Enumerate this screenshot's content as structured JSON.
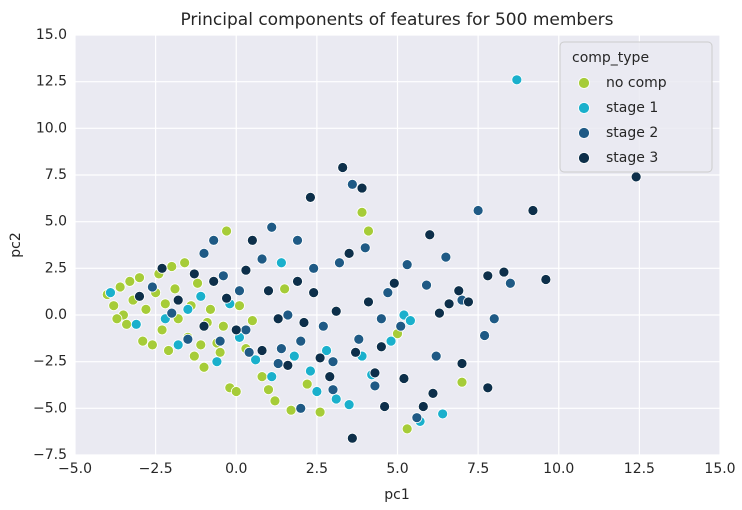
{
  "chart_data": {
    "type": "scatter",
    "title": "Principal components of features for 500 members",
    "x_label": "pc1",
    "y_label": "pc2",
    "legend_title": "comp_type",
    "legend": "upper right",
    "grid": true,
    "xlim": [
      -5,
      15
    ],
    "ylim": [
      -7.5,
      15
    ],
    "xticks": [
      {
        "value": -5,
        "label": "−5.0"
      },
      {
        "value": -2.5,
        "label": "−2.5"
      },
      {
        "value": 0,
        "label": "0.0"
      },
      2.5,
      {
        "value": 5,
        "label": "5.0"
      },
      7.5,
      {
        "value": 10,
        "label": "10.0"
      },
      12.5,
      {
        "value": 15,
        "label": "15.0"
      }
    ],
    "yticks": [
      {
        "value": -7.5,
        "label": "−7.5"
      },
      {
        "value": -5,
        "label": "−5.0"
      },
      {
        "value": -2.5,
        "label": "−2.5"
      },
      {
        "value": 0,
        "label": "0.0"
      },
      2.5,
      {
        "value": 5,
        "label": "5.0"
      },
      7.5,
      {
        "value": 10,
        "label": "10.0"
      },
      12.5,
      {
        "value": 15,
        "label": "15.0"
      }
    ],
    "series": [
      {
        "name": "no comp",
        "color": "#a6cc38",
        "x": [
          -4,
          -3.8,
          -3.6,
          -3.5,
          -3.4,
          -3.3,
          -3.2,
          -3,
          -2.9,
          -2.8,
          -2.6,
          -2.5,
          -2.4,
          -2.3,
          -2.2,
          -2.1,
          -2,
          -1.9,
          -1.8,
          -1.6,
          -1.5,
          -1.4,
          -1.3,
          -1.2,
          -1.1,
          -1,
          -0.9,
          -0.8,
          -0.6,
          -0.5,
          -0.4,
          -0.3,
          -0.2,
          0,
          0.1,
          0.3,
          0.5,
          0.8,
          1,
          1.2,
          1.5,
          1.7,
          2.2,
          2.6,
          3.9,
          4.1,
          5,
          5.3,
          7,
          -3.7
        ],
        "y": [
          1.1,
          0.5,
          1.5,
          0,
          -0.5,
          1.8,
          0.8,
          2,
          -1.4,
          0.3,
          -1.6,
          1.2,
          2.2,
          -0.8,
          0.6,
          -1.9,
          2.6,
          1.4,
          -0.2,
          2.8,
          -1.2,
          0.5,
          -2.2,
          1.7,
          -1.6,
          -2.8,
          -0.4,
          0.3,
          -1.5,
          -2,
          -0.6,
          4.5,
          -3.9,
          -4.1,
          0.5,
          -1.8,
          -0.3,
          -3.3,
          -4,
          -4.6,
          1.4,
          -5.1,
          -3.7,
          -5.2,
          5.5,
          4.5,
          -1,
          -6.1,
          -3.6,
          -0.2
        ]
      },
      {
        "name": "stage 1",
        "color": "#1ab0cc",
        "x": [
          8.7,
          -3.9,
          -3.1,
          -2.2,
          -1.8,
          -1.5,
          -1.1,
          -0.6,
          -0.2,
          0.1,
          0.6,
          1.1,
          1.4,
          1.8,
          2.3,
          2.8,
          3.1,
          3.5,
          3.9,
          4.2,
          5.2,
          5.4,
          6.4,
          5.7,
          2.5,
          4.8
        ],
        "y": [
          12.6,
          1.2,
          -0.5,
          -0.2,
          -1.6,
          0.3,
          1,
          -2.5,
          0.6,
          -1.2,
          -2.4,
          -3.3,
          2.8,
          -2.2,
          -3,
          -1.9,
          -4.5,
          -4.8,
          -2.2,
          -3.2,
          0,
          -0.3,
          -5.3,
          -5.7,
          -4.1,
          -1.4
        ]
      },
      {
        "name": "stage 2",
        "color": "#1f5a85",
        "x": [
          -2.6,
          -2,
          -1.5,
          -1,
          -0.7,
          -0.4,
          0.1,
          0.4,
          0.8,
          1.1,
          1.3,
          1.6,
          1.9,
          2,
          2.4,
          2.7,
          3,
          3.2,
          3.6,
          3.8,
          4,
          4.3,
          4.7,
          5.1,
          5.3,
          5.6,
          5.9,
          6.2,
          6.5,
          7,
          7.5,
          7.7,
          8,
          8.5,
          3,
          2,
          0.3,
          1.4,
          -0.5,
          4.5
        ],
        "y": [
          1.5,
          0.1,
          -1.3,
          3.3,
          4,
          2.1,
          1.3,
          -2,
          3,
          4.7,
          -2.6,
          0,
          4,
          -1.4,
          2.5,
          -0.6,
          -2.5,
          2.8,
          7,
          -1.3,
          3.6,
          -3.8,
          1.2,
          -0.6,
          2.7,
          -5.5,
          1.6,
          -2.2,
          3.1,
          0.8,
          5.6,
          -1.1,
          -0.2,
          1.7,
          -4,
          -5,
          -0.8,
          -1.8,
          -1.4,
          -0.2
        ]
      },
      {
        "name": "stage 3",
        "color": "#0d2f4a",
        "x": [
          -3,
          -2.3,
          -1.8,
          -1.3,
          -1,
          -0.7,
          -0.3,
          0,
          0.3,
          0.5,
          0.8,
          1,
          1.3,
          1.6,
          1.9,
          2.1,
          2.3,
          2.4,
          2.6,
          2.9,
          3.1,
          3.3,
          3.5,
          3.6,
          3.7,
          3.9,
          4.1,
          4.3,
          4.5,
          4.6,
          4.9,
          5.2,
          5.8,
          6,
          6.1,
          6.3,
          6.6,
          7,
          7.2,
          7.8,
          7.8,
          8.3,
          9.2,
          9.6,
          12.4,
          6.9
        ],
        "y": [
          1,
          2.5,
          0.8,
          2.2,
          -0.6,
          1.8,
          0.9,
          -0.8,
          2.4,
          4,
          -1.9,
          1.3,
          -0.2,
          -2.7,
          1.8,
          -0.4,
          6.3,
          1.2,
          -2.3,
          -3.3,
          0.2,
          7.9,
          3.3,
          -6.6,
          -2,
          6.8,
          0.7,
          -3.1,
          -1.7,
          -4.9,
          1.7,
          -3.4,
          -4.9,
          4.3,
          -4.2,
          0.1,
          0.6,
          -2.6,
          0.7,
          2.1,
          -3.9,
          2.3,
          5.6,
          1.9,
          7.4,
          1.3
        ]
      }
    ]
  }
}
